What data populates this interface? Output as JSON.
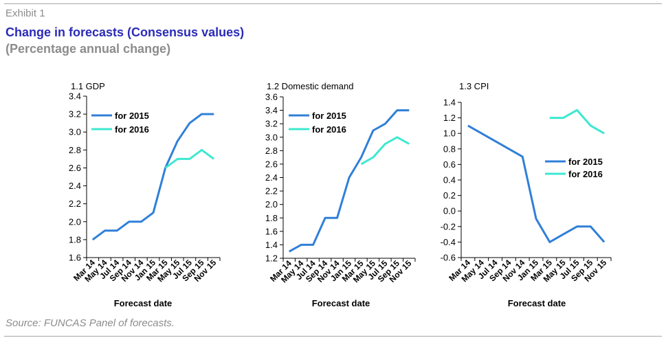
{
  "header": {
    "exhibit": "Exhibit 1",
    "title": "Change in forecasts (Consensus values)",
    "subtitle": "(Percentage annual change)"
  },
  "footer": {
    "source": "Source: FUNCAS Panel of forecasts."
  },
  "colors": {
    "series_2015": "#2f7fd8",
    "series_2016": "#3de8d0",
    "axis": "#000000"
  },
  "chart_data": [
    {
      "type": "line",
      "title": "1.1 GDP",
      "xlabel": "Forecast date",
      "ylabel": "",
      "x": [
        "Mar 14",
        "May 14",
        "Jul 14",
        "Sep 14",
        "Nov 14",
        "Jan 15",
        "Mar 15",
        "May 15",
        "Jul 15",
        "Sep 15",
        "Nov 15"
      ],
      "ylim": [
        1.6,
        3.4
      ],
      "yticks": [
        "1.6",
        "1.8",
        "2.0",
        "2.2",
        "2.4",
        "2.6",
        "2.8",
        "3.0",
        "3.2",
        "3.4"
      ],
      "legend_position": "top-left",
      "series": [
        {
          "name": "for 2015",
          "values": [
            1.8,
            1.9,
            1.9,
            2.0,
            2.0,
            2.1,
            2.6,
            2.9,
            3.1,
            3.2,
            3.2
          ]
        },
        {
          "name": "for 2016",
          "values": [
            null,
            null,
            null,
            null,
            null,
            null,
            2.6,
            2.7,
            2.7,
            2.8,
            2.7
          ]
        }
      ]
    },
    {
      "type": "line",
      "title": "1.2 Domestic demand",
      "xlabel": "Forecast date",
      "ylabel": "",
      "x": [
        "Mar 14",
        "May 14",
        "Jul 14",
        "Sep 14",
        "Nov 14",
        "Jan 15",
        "Mar 15",
        "May 15",
        "Jul 15",
        "Sep 15",
        "Nov 15"
      ],
      "ylim": [
        1.2,
        3.6
      ],
      "yticks": [
        "1.2",
        "1.4",
        "1.6",
        "1.8",
        "2.0",
        "2.2",
        "2.4",
        "2.6",
        "2.8",
        "3.0",
        "3.2",
        "3.4",
        "3.6"
      ],
      "legend_position": "top-left",
      "series": [
        {
          "name": "for 2015",
          "values": [
            1.3,
            1.4,
            1.4,
            1.8,
            1.8,
            2.4,
            2.7,
            3.1,
            3.2,
            3.4,
            3.4
          ]
        },
        {
          "name": "for 2016",
          "values": [
            null,
            null,
            null,
            null,
            null,
            null,
            2.6,
            2.7,
            2.9,
            3.0,
            2.9
          ]
        }
      ]
    },
    {
      "type": "line",
      "title": "1.3 CPI",
      "xlabel": "Forecast date",
      "ylabel": "",
      "x": [
        "Mar 14",
        "May 14",
        "Jul 14",
        "Sep 14",
        "Nov 14",
        "Jan 15",
        "Mar 15",
        "May 15",
        "Jul 15",
        "Sep 15",
        "Nov 15"
      ],
      "ylim": [
        -0.6,
        1.4
      ],
      "yticks": [
        "-0.6",
        "-0.4",
        "-0.2",
        "0.0",
        "0.2",
        "0.4",
        "0.6",
        "0.8",
        "1.0",
        "1.2",
        "1.4"
      ],
      "legend_position": "middle-right",
      "series": [
        {
          "name": "for 2015",
          "values": [
            1.1,
            null,
            null,
            null,
            0.7,
            -0.1,
            -0.4,
            -0.3,
            -0.2,
            -0.2,
            -0.4
          ]
        },
        {
          "name": "for 2016",
          "values": [
            null,
            null,
            null,
            null,
            null,
            null,
            1.2,
            1.2,
            1.3,
            1.1,
            1.0
          ]
        }
      ]
    }
  ]
}
